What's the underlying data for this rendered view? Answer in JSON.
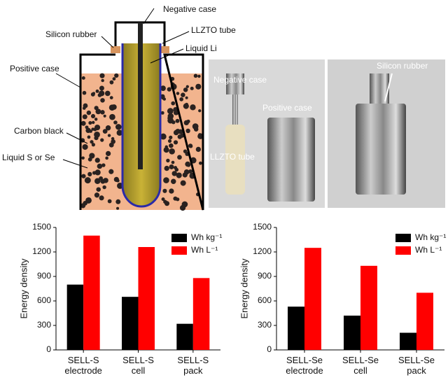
{
  "diagram": {
    "labels": [
      "Negative case",
      "Silicon rubber",
      "LLZTO tube",
      "Liquid Li",
      "Positive case",
      "Carbon black",
      "Liquid S or Se"
    ]
  },
  "photos": {
    "labels": [
      "Negative case",
      "Positive case",
      "LLZTO tube",
      "Silicon rubber"
    ]
  },
  "chart_data": [
    {
      "type": "bar",
      "ylabel": "Energy density",
      "categories": [
        "SELL-S\nelectrode",
        "SELL-S\ncell",
        "SELL-S\npack"
      ],
      "series": [
        {
          "name": "Wh kg⁻¹",
          "color": "#000000",
          "values": [
            800,
            650,
            320
          ]
        },
        {
          "name": "Wh L⁻¹",
          "color": "#ff0000",
          "values": [
            1400,
            1260,
            880
          ]
        }
      ],
      "ylim": [
        0,
        1500
      ],
      "yticks": [
        0,
        300,
        600,
        900,
        1200,
        1500
      ],
      "legend": "upper right"
    },
    {
      "type": "bar",
      "ylabel": "Energy density",
      "categories": [
        "SELL-Se\nelectrode",
        "SELL-Se\ncell",
        "SELL-Se\npack"
      ],
      "series": [
        {
          "name": "Wh kg⁻¹",
          "color": "#000000",
          "values": [
            530,
            420,
            210
          ]
        },
        {
          "name": "Wh L⁻¹",
          "color": "#ff0000",
          "values": [
            1250,
            1030,
            700
          ]
        }
      ],
      "ylim": [
        0,
        1500
      ],
      "yticks": [
        0,
        300,
        600,
        900,
        1200,
        1500
      ],
      "legend": "upper right"
    }
  ]
}
